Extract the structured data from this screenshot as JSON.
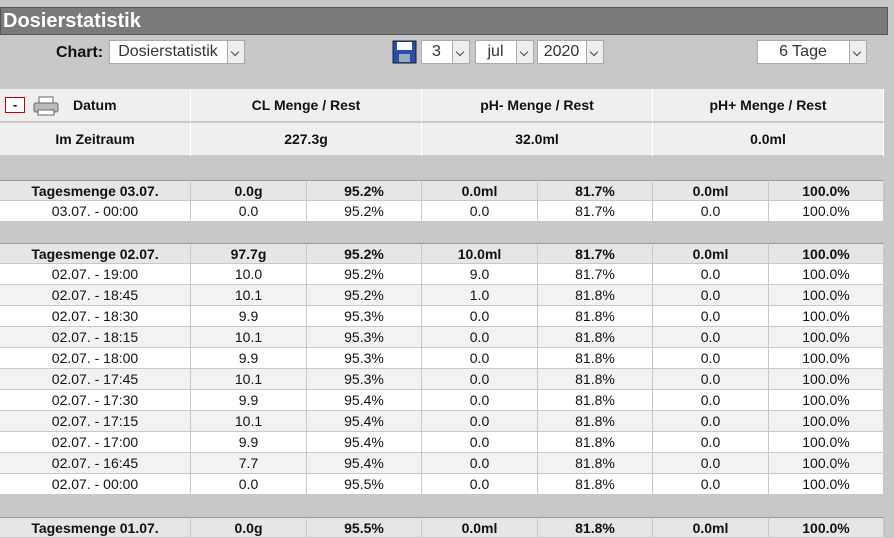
{
  "header": {
    "title": "Dosierstatistik"
  },
  "toolbar": {
    "chart_label": "Chart:",
    "chart_select": "Dosierstatistik",
    "day": "3",
    "month": "jul",
    "year": "2020",
    "range": "6 Tage"
  },
  "table": {
    "collapse": "-",
    "headers": [
      "Datum",
      "CL Menge / Rest",
      "pH- Menge / Rest",
      "pH+ Menge / Rest"
    ],
    "summary": {
      "label": "Im Zeitraum",
      "values": [
        "227.3g",
        "32.0ml",
        "0.0ml"
      ]
    },
    "groups": [
      {
        "total": [
          "Tagesmenge 03.07.",
          "0.0g",
          "95.2%",
          "0.0ml",
          "81.7%",
          "0.0ml",
          "100.0%"
        ],
        "rows": [
          [
            "03.07. - 00:00",
            "0.0",
            "95.2%",
            "0.0",
            "81.7%",
            "0.0",
            "100.0%"
          ]
        ]
      },
      {
        "total": [
          "Tagesmenge 02.07.",
          "97.7g",
          "95.2%",
          "10.0ml",
          "81.7%",
          "0.0ml",
          "100.0%"
        ],
        "rows": [
          [
            "02.07. - 19:00",
            "10.0",
            "95.2%",
            "9.0",
            "81.7%",
            "0.0",
            "100.0%"
          ],
          [
            "02.07. - 18:45",
            "10.1",
            "95.2%",
            "1.0",
            "81.8%",
            "0.0",
            "100.0%"
          ],
          [
            "02.07. - 18:30",
            "9.9",
            "95.3%",
            "0.0",
            "81.8%",
            "0.0",
            "100.0%"
          ],
          [
            "02.07. - 18:15",
            "10.1",
            "95.3%",
            "0.0",
            "81.8%",
            "0.0",
            "100.0%"
          ],
          [
            "02.07. - 18:00",
            "9.9",
            "95.3%",
            "0.0",
            "81.8%",
            "0.0",
            "100.0%"
          ],
          [
            "02.07. - 17:45",
            "10.1",
            "95.3%",
            "0.0",
            "81.8%",
            "0.0",
            "100.0%"
          ],
          [
            "02.07. - 17:30",
            "9.9",
            "95.4%",
            "0.0",
            "81.8%",
            "0.0",
            "100.0%"
          ],
          [
            "02.07. - 17:15",
            "10.1",
            "95.4%",
            "0.0",
            "81.8%",
            "0.0",
            "100.0%"
          ],
          [
            "02.07. - 17:00",
            "9.9",
            "95.4%",
            "0.0",
            "81.8%",
            "0.0",
            "100.0%"
          ],
          [
            "02.07. - 16:45",
            "7.7",
            "95.4%",
            "0.0",
            "81.8%",
            "0.0",
            "100.0%"
          ],
          [
            "02.07. - 00:00",
            "0.0",
            "95.5%",
            "0.0",
            "81.8%",
            "0.0",
            "100.0%"
          ]
        ]
      },
      {
        "total": [
          "Tagesmenge 01.07.",
          "0.0g",
          "95.5%",
          "0.0ml",
          "81.8%",
          "0.0ml",
          "100.0%"
        ],
        "rows": []
      }
    ]
  }
}
